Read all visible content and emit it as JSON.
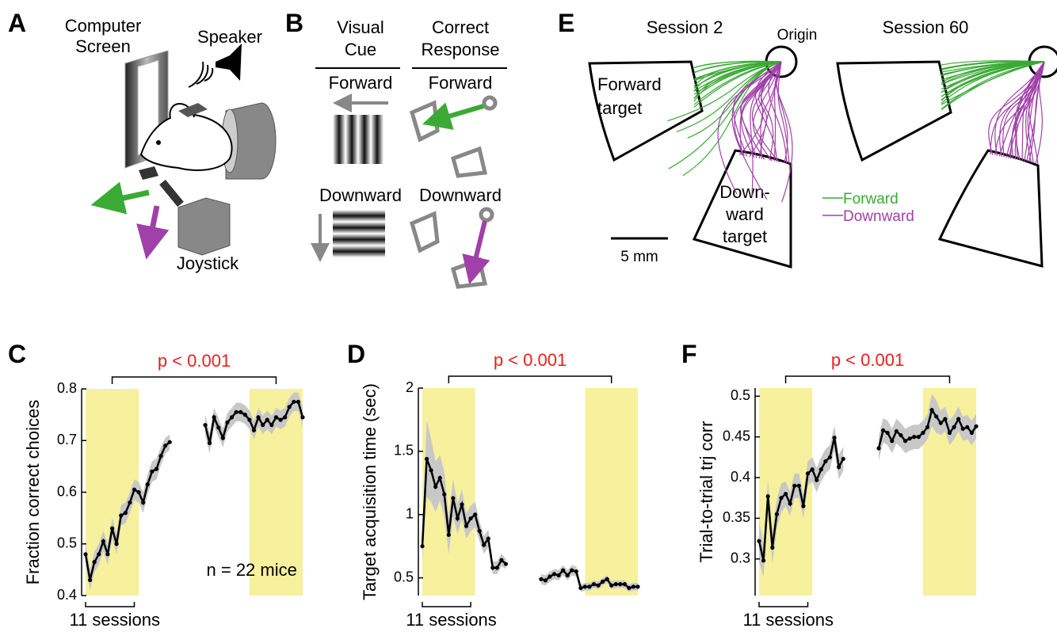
{
  "panel_a": {
    "letter": "A",
    "screen_label": [
      "Computer",
      "Screen"
    ],
    "speaker_label": "Speaker",
    "joystick_label": "Joystick"
  },
  "panel_b": {
    "letter": "B",
    "columns": [
      [
        "Visual",
        "Cue"
      ],
      [
        "Correct",
        "Response"
      ]
    ],
    "rows": [
      {
        "cue": "Forward",
        "response": "Forward"
      },
      {
        "cue": "Downward",
        "response": "Downward"
      }
    ]
  },
  "panel_e": {
    "letter": "E",
    "sessions": [
      "Session 2",
      "Session 60"
    ],
    "origin_label": "Origin",
    "forward_target": [
      "Forward",
      "target"
    ],
    "downward_target": [
      "Down-",
      "ward",
      "target"
    ],
    "legend": [
      {
        "name": "Forward",
        "color": "#3aaa35"
      },
      {
        "name": "Downward",
        "color": "#a040a8"
      }
    ],
    "scale_bar": "5 mm"
  },
  "chart_data": [
    {
      "type": "line",
      "letter": "C",
      "ylabel": "Fraction correct choices",
      "ylim": [
        0.4,
        0.8
      ],
      "yticks": [
        0.4,
        0.5,
        0.6,
        0.7,
        0.8
      ],
      "color": "#000000",
      "band_color": "#c8c8c8",
      "values": [
        0.48,
        0.43,
        0.465,
        0.48,
        0.505,
        0.48,
        0.53,
        0.5,
        0.555,
        0.56,
        0.58,
        0.605,
        0.6,
        0.58,
        0.615,
        0.64,
        0.645,
        0.67,
        0.69,
        0.697,
        null,
        null,
        null,
        null,
        null,
        null,
        null,
        0.73,
        0.695,
        0.745,
        0.725,
        0.705,
        0.735,
        0.745,
        0.755,
        0.755,
        0.75,
        0.74,
        0.72,
        0.745,
        0.73,
        0.74,
        0.73,
        0.745,
        0.74,
        0.745,
        0.765,
        0.775,
        0.775,
        0.745
      ],
      "errors": [
        0.02,
        0.02,
        0.02,
        0.02,
        0.02,
        0.02,
        0.02,
        0.02,
        0.02,
        0.02,
        0.02,
        0.02,
        0.02,
        0.02,
        0.02,
        0.02,
        0.02,
        0.018,
        0.015,
        0.015,
        null,
        null,
        null,
        null,
        null,
        null,
        null,
        0.02,
        0.02,
        0.018,
        0.018,
        0.018,
        0.018,
        0.018,
        0.018,
        0.018,
        0.018,
        0.018,
        0.018,
        0.018,
        0.018,
        0.018,
        0.018,
        0.018,
        0.018,
        0.018,
        0.018,
        0.018,
        0.018,
        0.02
      ],
      "highlights": [
        [
          0,
          12
        ],
        [
          37,
          49
        ]
      ],
      "highlight_color": "#f7f09c",
      "comparison": "p < 0.001",
      "comparison_color": "#e8201c",
      "scale_bar": {
        "value": 11,
        "label": "11 sessions"
      },
      "annotation": "n = 22 mice"
    },
    {
      "type": "line",
      "letter": "D",
      "ylabel": "Target acquisition time (sec)",
      "ylim": [
        0.36,
        2
      ],
      "yticks": [
        0.5,
        1,
        1.5,
        2
      ],
      "color": "#000000",
      "band_color": "#c8c8c8",
      "values": [
        0.75,
        1.44,
        1.35,
        1.22,
        1.29,
        1.16,
        0.84,
        1.13,
        0.97,
        1.08,
        0.91,
        0.97,
        1.0,
        0.87,
        0.76,
        0.81,
        0.58,
        0.58,
        0.64,
        0.61,
        null,
        null,
        null,
        null,
        null,
        null,
        null,
        0.49,
        0.48,
        0.51,
        0.53,
        0.52,
        0.56,
        0.52,
        0.56,
        0.55,
        0.42,
        0.43,
        0.43,
        0.45,
        0.44,
        0.47,
        0.49,
        0.44,
        0.45,
        0.45,
        0.45,
        0.42,
        0.43,
        0.43
      ],
      "errors": [
        0.12,
        0.3,
        0.25,
        0.2,
        0.18,
        0.18,
        0.15,
        0.15,
        0.12,
        0.12,
        0.1,
        0.1,
        0.1,
        0.08,
        0.07,
        0.07,
        0.05,
        0.05,
        0.05,
        0.04,
        null,
        null,
        null,
        null,
        null,
        null,
        null,
        0.04,
        0.04,
        0.04,
        0.04,
        0.04,
        0.04,
        0.04,
        0.04,
        0.04,
        0.03,
        0.03,
        0.03,
        0.03,
        0.03,
        0.03,
        0.03,
        0.03,
        0.03,
        0.03,
        0.03,
        0.03,
        0.03,
        0.03
      ],
      "highlights": [
        [
          0,
          12
        ],
        [
          37,
          49
        ]
      ],
      "highlight_color": "#f7f09c",
      "comparison": "p < 0.001",
      "comparison_color": "#e8201c",
      "scale_bar": {
        "value": 11,
        "label": "11 sessions"
      }
    },
    {
      "type": "line",
      "letter": "F",
      "ylabel": "Trial-to-trial trj corr",
      "ylim": [
        0.255,
        0.51
      ],
      "yticks": [
        0.3,
        0.35,
        0.4,
        0.45,
        0.5
      ],
      "color": "#000000",
      "band_color": "#c8c8c8",
      "values": [
        0.322,
        0.298,
        0.377,
        0.314,
        0.355,
        0.375,
        0.38,
        0.368,
        0.39,
        0.39,
        0.365,
        0.405,
        0.41,
        0.397,
        0.41,
        0.42,
        0.425,
        0.449,
        0.413,
        0.423,
        null,
        null,
        null,
        null,
        null,
        null,
        null,
        0.436,
        0.458,
        0.455,
        0.445,
        0.457,
        0.452,
        0.445,
        0.448,
        0.45,
        0.45,
        0.455,
        0.462,
        0.483,
        0.475,
        0.467,
        0.472,
        0.455,
        0.462,
        0.472,
        0.46,
        0.462,
        0.455,
        0.463
      ],
      "errors": [
        0.025,
        0.02,
        0.02,
        0.02,
        0.018,
        0.018,
        0.015,
        0.015,
        0.015,
        0.015,
        0.015,
        0.015,
        0.015,
        0.015,
        0.015,
        0.015,
        0.015,
        0.015,
        0.015,
        0.015,
        null,
        null,
        null,
        null,
        null,
        null,
        null,
        0.015,
        0.015,
        0.015,
        0.015,
        0.015,
        0.015,
        0.015,
        0.015,
        0.015,
        0.015,
        0.015,
        0.015,
        0.02,
        0.02,
        0.015,
        0.015,
        0.015,
        0.015,
        0.015,
        0.015,
        0.015,
        0.015,
        0.015
      ],
      "highlights": [
        [
          0,
          12
        ],
        [
          37,
          49
        ]
      ],
      "highlight_color": "#f7f09c",
      "comparison": "p < 0.001",
      "comparison_color": "#e8201c",
      "scale_bar": {
        "value": 11,
        "label": "11 sessions"
      }
    }
  ]
}
